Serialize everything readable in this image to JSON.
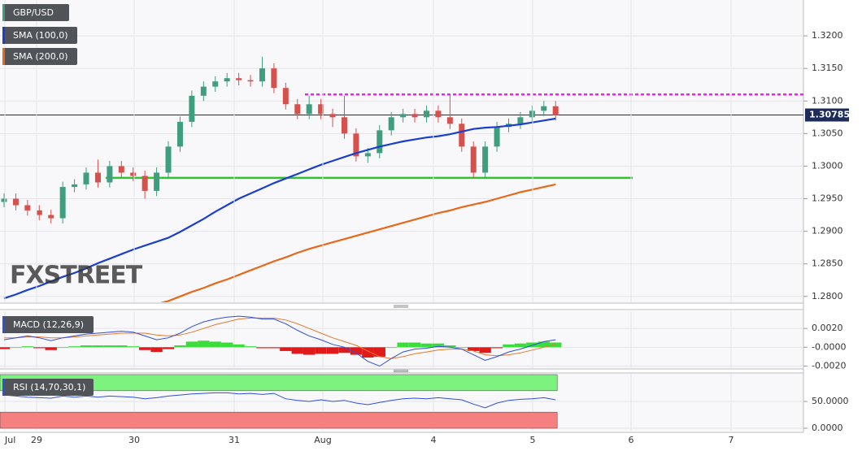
{
  "chart_data": [
    {
      "type": "candlestick",
      "title": "GBP/USD",
      "watermark": "FXSTREET",
      "up_color": "#3f9e7e",
      "down_color": "#d6504c",
      "open": [
        1.2945,
        1.295,
        1.294,
        1.2932,
        1.2925,
        1.292,
        1.2968,
        1.2972,
        1.299,
        1.2975,
        1.3,
        1.299,
        1.2985,
        1.2962,
        1.299,
        1.303,
        1.3068,
        1.3108,
        1.3122,
        1.313,
        1.3135,
        1.3132,
        1.313,
        1.315,
        1.312,
        1.3095,
        1.308,
        1.3095,
        1.308,
        1.3075,
        1.305,
        1.3015,
        1.302,
        1.3055,
        1.3075,
        1.308,
        1.3075,
        1.3085,
        1.3075,
        1.3065,
        1.303,
        1.299,
        1.303,
        1.306,
        1.3065,
        1.3075,
        1.3085,
        1.3092
      ],
      "high": [
        1.2958,
        1.2958,
        1.2948,
        1.294,
        1.2933,
        1.2976,
        1.298,
        1.2998,
        1.301,
        1.3008,
        1.3008,
        1.2998,
        1.2993,
        1.2998,
        1.3038,
        1.3076,
        1.3116,
        1.313,
        1.3138,
        1.3143,
        1.3143,
        1.314,
        1.3168,
        1.3158,
        1.3128,
        1.3103,
        1.3108,
        1.3103,
        1.3088,
        1.3108,
        1.3058,
        1.3028,
        1.3063,
        1.3083,
        1.3088,
        1.3088,
        1.3093,
        1.3093,
        1.311,
        1.3073,
        1.3038,
        1.3038,
        1.3068,
        1.3073,
        1.3083,
        1.3093,
        1.31,
        1.31
      ],
      "low": [
        1.2937,
        1.2932,
        1.2924,
        1.2917,
        1.2912,
        1.2912,
        1.296,
        1.2964,
        1.2967,
        1.2967,
        1.2982,
        1.2977,
        1.295,
        1.2954,
        1.2982,
        1.3022,
        1.306,
        1.31,
        1.3114,
        1.3122,
        1.3124,
        1.3122,
        1.3122,
        1.3112,
        1.3087,
        1.3072,
        1.3072,
        1.3072,
        1.306,
        1.3042,
        1.3007,
        1.3005,
        1.3012,
        1.3047,
        1.3067,
        1.3067,
        1.3067,
        1.3067,
        1.3057,
        1.3022,
        1.2982,
        1.2982,
        1.3022,
        1.3052,
        1.3057,
        1.3067,
        1.3077,
        1.307
      ],
      "close": [
        1.295,
        1.294,
        1.2932,
        1.2925,
        1.292,
        1.2968,
        1.2972,
        1.299,
        1.2975,
        1.3,
        1.299,
        1.2985,
        1.2962,
        1.299,
        1.303,
        1.3068,
        1.3108,
        1.3122,
        1.313,
        1.3135,
        1.3132,
        1.313,
        1.315,
        1.312,
        1.3095,
        1.308,
        1.3095,
        1.308,
        1.3075,
        1.305,
        1.3015,
        1.302,
        1.3055,
        1.3075,
        1.308,
        1.3075,
        1.3085,
        1.3075,
        1.3065,
        1.303,
        1.299,
        1.303,
        1.306,
        1.3065,
        1.3075,
        1.3085,
        1.3092,
        1.3078
      ],
      "overlays": [
        {
          "name": "SMA (100,0)",
          "color": "#1a3fd0",
          "values": [
            1.2797,
            1.2803,
            1.281,
            1.2816,
            1.2823,
            1.283,
            1.2836,
            1.2843,
            1.2851,
            1.2858,
            1.2865,
            1.2872,
            1.2878,
            1.2884,
            1.289,
            1.2899,
            1.2909,
            1.2919,
            1.293,
            1.294,
            1.295,
            1.2958,
            1.2966,
            1.2974,
            1.2981,
            1.2988,
            1.2995,
            1.3002,
            1.3008,
            1.3014,
            1.302,
            1.3025,
            1.303,
            1.3034,
            1.3038,
            1.3041,
            1.3044,
            1.3046,
            1.3049,
            1.3053,
            1.3057,
            1.3059,
            1.306,
            1.3062,
            1.3064,
            1.3067,
            1.307,
            1.3073
          ]
        },
        {
          "name": "SMA (200,0)",
          "color": "#e8681a",
          "values": [
            null,
            null,
            null,
            null,
            null,
            null,
            null,
            null,
            null,
            null,
            null,
            null,
            null,
            1.2788,
            1.2793,
            1.28,
            1.2807,
            1.2813,
            1.282,
            1.2826,
            1.2833,
            1.284,
            1.2847,
            1.2854,
            1.286,
            1.2867,
            1.2873,
            1.2878,
            1.2883,
            1.2888,
            1.2893,
            1.2898,
            1.2903,
            1.2908,
            1.2913,
            1.2918,
            1.2923,
            1.2928,
            1.2932,
            1.2937,
            1.2941,
            1.2945,
            1.295,
            1.2955,
            1.296,
            1.2964,
            1.2968,
            1.2972
          ]
        }
      ],
      "levels": [
        {
          "value": 1.2982,
          "color": "#2ec52e",
          "style": "solid"
        },
        {
          "value": 1.311,
          "color": "#ee22ee",
          "style": "dotted"
        }
      ],
      "last_price": 1.30785,
      "ylim": [
        1.2791,
        1.3255
      ],
      "yticks": [
        {
          "value": 1.28,
          "label": "1.2800"
        },
        {
          "value": 1.285,
          "label": "1.2850"
        },
        {
          "value": 1.29,
          "label": "1.2900"
        },
        {
          "value": 1.295,
          "label": "1.2950"
        },
        {
          "value": 1.3,
          "label": "1.3000"
        },
        {
          "value": 1.305,
          "label": "1.3050"
        },
        {
          "value": 1.31,
          "label": "1.3100"
        },
        {
          "value": 1.315,
          "label": "1.3150"
        },
        {
          "value": 1.32,
          "label": "1.3200"
        }
      ],
      "x_labels": [
        "Jul",
        "29",
        "30",
        "31",
        "Aug",
        "4",
        "5",
        "6",
        "7"
      ],
      "grid": true
    },
    {
      "type": "macd",
      "title": "MACD (12,26,9)",
      "macd_color": "#2f4fd8",
      "signal_color": "#e8782a",
      "pos_color": "#3ddc3d",
      "neg_color": "#e01a1a",
      "macd": [
        0.0008,
        0.001,
        0.0012,
        0.001,
        0.0007,
        0.001,
        0.0012,
        0.0014,
        0.0015,
        0.0016,
        0.0017,
        0.0016,
        0.0012,
        0.0008,
        0.001,
        0.0015,
        0.0022,
        0.0027,
        0.003,
        0.0032,
        0.0033,
        0.0032,
        0.003,
        0.003,
        0.0025,
        0.0018,
        0.0012,
        0.0008,
        0.0003,
        0.0,
        -0.0006,
        -0.0015,
        -0.002,
        -0.0012,
        -0.0005,
        -0.0002,
        -0.0001,
        0.0001,
        0.0,
        -0.0002,
        -0.0008,
        -0.0014,
        -0.001,
        -0.0005,
        -0.0002,
        0.0002,
        0.0006,
        0.0008
      ],
      "signal": [
        0.001,
        0.001,
        0.0011,
        0.0011,
        0.001,
        0.001,
        0.0011,
        0.0012,
        0.0013,
        0.0014,
        0.0015,
        0.0015,
        0.0015,
        0.0013,
        0.0012,
        0.0013,
        0.0016,
        0.002,
        0.0024,
        0.0027,
        0.003,
        0.0031,
        0.0031,
        0.0031,
        0.0029,
        0.0025,
        0.002,
        0.0015,
        0.001,
        0.0006,
        0.0002,
        -0.0004,
        -0.001,
        -0.0012,
        -0.001,
        -0.0007,
        -0.0005,
        -0.0003,
        -0.0002,
        -0.0002,
        -0.0004,
        -0.0008,
        -0.0009,
        -0.0008,
        -0.0006,
        -0.0003,
        0.0,
        0.0003
      ],
      "histogram": [
        -0.0002,
        0.0,
        0.0001,
        -0.0001,
        -0.0003,
        0.0,
        0.0001,
        0.0002,
        0.0002,
        0.0002,
        0.0002,
        0.0001,
        -0.0003,
        -0.0005,
        -0.0002,
        0.0002,
        0.0006,
        0.0007,
        0.0006,
        0.0005,
        0.0003,
        0.0001,
        -0.0001,
        -0.0001,
        -0.0004,
        -0.0007,
        -0.0008,
        -0.0007,
        -0.0007,
        -0.0006,
        -0.0008,
        -0.0011,
        -0.001,
        0.0,
        0.0005,
        0.0005,
        0.0004,
        0.0004,
        0.0002,
        0.0,
        -0.0004,
        -0.0006,
        -0.0001,
        0.0003,
        0.0004,
        0.0005,
        0.0006,
        0.0005
      ],
      "ylim": [
        -0.00222,
        0.00383
      ],
      "yticks": [
        {
          "value": 0.002,
          "label": "0.0020"
        },
        {
          "value": 0,
          "label": "-0.0000"
        },
        {
          "value": -0.002,
          "label": "-0.0020"
        }
      ]
    },
    {
      "type": "rsi",
      "title": "RSI (14,70,30,1)",
      "color": "#2f4fd8",
      "overbought": 70,
      "oversold": 30,
      "overbought_color": "#7ef27e",
      "oversold_color": "#f58080",
      "values": [
        62,
        60,
        58,
        57,
        56,
        60,
        58,
        60,
        58,
        60,
        59,
        58,
        55,
        57,
        60,
        62,
        64,
        65,
        66,
        66,
        64,
        65,
        63,
        65,
        55,
        52,
        50,
        53,
        50,
        52,
        47,
        44,
        48,
        52,
        55,
        56,
        55,
        57,
        55,
        53,
        45,
        38,
        47,
        52,
        54,
        55,
        57,
        53
      ],
      "ylim": [
        -4.5,
        101.5
      ],
      "yticks": [
        {
          "value": 50,
          "label": "50.0000"
        },
        {
          "value": 0,
          "label": "0.0000"
        }
      ]
    }
  ]
}
